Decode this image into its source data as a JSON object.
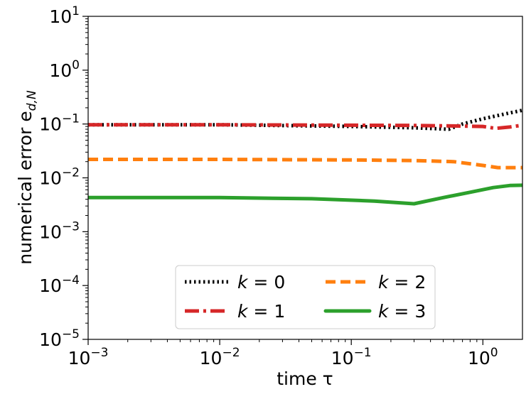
{
  "chart_data": {
    "type": "line",
    "xlabel": "time τ",
    "ylabel": "numerical error e",
    "ylabel_sub": "d,N",
    "x_scale": "log",
    "y_scale": "log",
    "xlim": [
      0.001,
      2
    ],
    "ylim": [
      1e-05,
      10
    ],
    "x_ticks": [
      {
        "value": 0.001,
        "base": "10",
        "exp": "−3"
      },
      {
        "value": 0.01,
        "base": "10",
        "exp": "−2"
      },
      {
        "value": 0.1,
        "base": "10",
        "exp": "−1"
      },
      {
        "value": 1,
        "base": "10",
        "exp": "0"
      }
    ],
    "y_ticks": [
      {
        "value": 1e-05,
        "base": "10",
        "exp": "−5"
      },
      {
        "value": 0.0001,
        "base": "10",
        "exp": "−4"
      },
      {
        "value": 0.001,
        "base": "10",
        "exp": "−3"
      },
      {
        "value": 0.01,
        "base": "10",
        "exp": "−2"
      },
      {
        "value": 0.1,
        "base": "10",
        "exp": "−1"
      },
      {
        "value": 1,
        "base": "10",
        "exp": "0"
      },
      {
        "value": 10,
        "base": "10",
        "exp": "1"
      }
    ],
    "grid": false,
    "legend_position": "bottom-center",
    "legend_columns": 2,
    "series": [
      {
        "name": "k = 0",
        "color": "#000000",
        "style": "dotted",
        "x": [
          0.001,
          0.01,
          0.1,
          0.3,
          0.55,
          0.7,
          1.0,
          1.5,
          2.0
        ],
        "y": [
          0.097,
          0.097,
          0.09,
          0.085,
          0.08,
          0.1,
          0.125,
          0.155,
          0.18
        ]
      },
      {
        "name": "k = 1",
        "color": "#d62728",
        "style": "dashdot",
        "x": [
          0.001,
          0.01,
          0.1,
          0.3,
          0.6,
          1.0,
          1.25,
          1.6,
          2.0
        ],
        "y": [
          0.097,
          0.097,
          0.095,
          0.094,
          0.092,
          0.09,
          0.083,
          0.088,
          0.095
        ]
      },
      {
        "name": "k = 2",
        "color": "#ff7f0e",
        "style": "dashed",
        "x": [
          0.001,
          0.01,
          0.1,
          0.3,
          0.6,
          1.0,
          1.3,
          2.0
        ],
        "y": [
          0.022,
          0.022,
          0.0215,
          0.021,
          0.02,
          0.017,
          0.0155,
          0.0155
        ]
      },
      {
        "name": "k = 3",
        "color": "#2ca02c",
        "style": "solid",
        "x": [
          0.001,
          0.01,
          0.05,
          0.15,
          0.3,
          0.5,
          0.8,
          1.2,
          1.6,
          2.0
        ],
        "y": [
          0.0043,
          0.0043,
          0.0041,
          0.0037,
          0.0033,
          0.0043,
          0.0054,
          0.0066,
          0.0072,
          0.0073
        ]
      }
    ]
  }
}
